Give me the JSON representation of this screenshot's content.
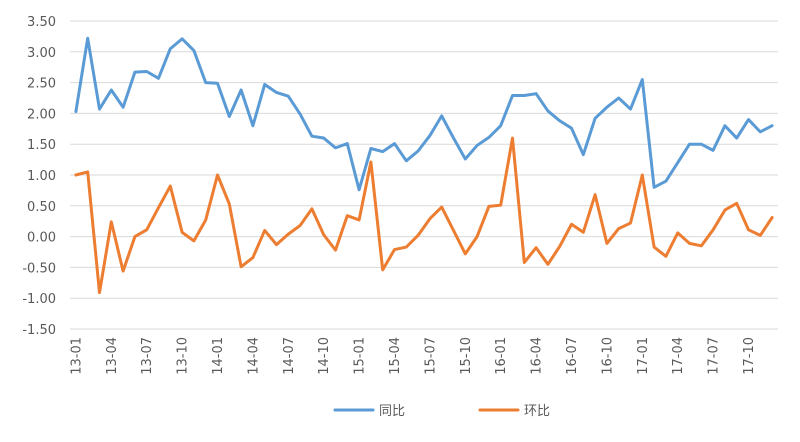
{
  "chart_data": {
    "type": "line",
    "title": "",
    "xlabel": "",
    "ylabel": "",
    "ylim": [
      -1.5,
      3.5
    ],
    "y_ticks": [
      "3.50",
      "3.00",
      "2.50",
      "2.00",
      "1.50",
      "1.00",
      "0.50",
      "0.00",
      "-0.50",
      "-1.00",
      "-1.50"
    ],
    "x_tick_labels": [
      "13-01",
      "13-04",
      "13-07",
      "13-10",
      "14-01",
      "14-04",
      "14-07",
      "14-10",
      "15-01",
      "15-04",
      "15-07",
      "15-10",
      "16-01",
      "16-04",
      "16-07",
      "16-10",
      "17-01",
      "17-04",
      "17-07",
      "17-10"
    ],
    "categories": [
      "13-01",
      "13-02",
      "13-03",
      "13-04",
      "13-05",
      "13-06",
      "13-07",
      "13-08",
      "13-09",
      "13-10",
      "13-11",
      "13-12",
      "14-01",
      "14-02",
      "14-03",
      "14-04",
      "14-05",
      "14-06",
      "14-07",
      "14-08",
      "14-09",
      "14-10",
      "14-11",
      "14-12",
      "15-01",
      "15-02",
      "15-03",
      "15-04",
      "15-05",
      "15-06",
      "15-07",
      "15-08",
      "15-09",
      "15-10",
      "15-11",
      "15-12",
      "16-01",
      "16-02",
      "16-03",
      "16-04",
      "16-05",
      "16-06",
      "16-07",
      "16-08",
      "16-09",
      "16-10",
      "16-11",
      "16-12",
      "17-01",
      "17-02",
      "17-03",
      "17-04",
      "17-05",
      "17-06",
      "17-07",
      "17-08",
      "17-09",
      "17-10",
      "17-11",
      "17-12"
    ],
    "series": [
      {
        "name": "同比",
        "color": "#5B9BD5",
        "values": [
          2.03,
          3.22,
          2.07,
          2.38,
          2.1,
          2.67,
          2.68,
          2.57,
          3.05,
          3.21,
          3.02,
          2.5,
          2.49,
          1.95,
          2.38,
          1.8,
          2.47,
          2.34,
          2.28,
          1.99,
          1.63,
          1.6,
          1.44,
          1.51,
          0.76,
          1.43,
          1.38,
          1.51,
          1.23,
          1.39,
          1.64,
          1.96,
          1.6,
          1.26,
          1.48,
          1.61,
          1.8,
          2.29,
          2.29,
          2.32,
          2.04,
          1.88,
          1.76,
          1.33,
          1.92,
          2.1,
          2.25,
          2.07,
          2.55,
          0.8,
          0.9,
          1.2,
          1.5,
          1.5,
          1.4,
          1.8,
          1.6,
          1.9,
          1.7,
          1.8
        ]
      },
      {
        "name": "环比",
        "color": "#ED7D31",
        "values": [
          1.0,
          1.05,
          -0.91,
          0.24,
          -0.56,
          0.0,
          0.11,
          0.47,
          0.82,
          0.07,
          -0.07,
          0.27,
          1.0,
          0.53,
          -0.49,
          -0.34,
          0.1,
          -0.13,
          0.04,
          0.18,
          0.45,
          0.03,
          -0.22,
          0.34,
          0.27,
          1.21,
          -0.54,
          -0.21,
          -0.17,
          0.02,
          0.29,
          0.48,
          0.1,
          -0.28,
          0.0,
          0.49,
          0.51,
          1.6,
          -0.42,
          -0.18,
          -0.45,
          -0.16,
          0.2,
          0.07,
          0.68,
          -0.11,
          0.13,
          0.22,
          1.0,
          -0.17,
          -0.32,
          0.06,
          -0.11,
          -0.15,
          0.11,
          0.43,
          0.54,
          0.11,
          0.02,
          0.31
        ]
      }
    ],
    "grid": true,
    "legend_position": "bottom"
  }
}
